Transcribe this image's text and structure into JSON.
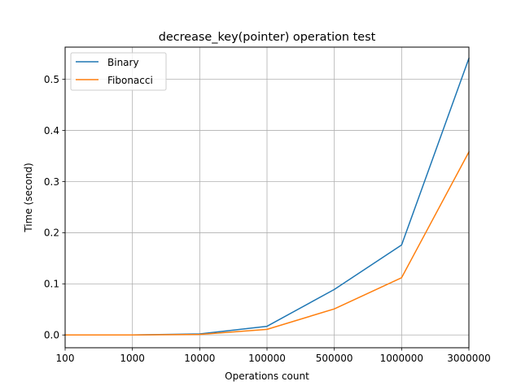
{
  "chart_data": {
    "type": "line",
    "title": "decrease_key(pointer) operation test",
    "xlabel": "Operations count",
    "ylabel": "Time (second)",
    "categories": [
      "100",
      "1000",
      "10000",
      "100000",
      "500000",
      "1000000",
      "3000000"
    ],
    "ylim": [
      -0.025,
      0.563
    ],
    "yticks": [
      0.0,
      0.1,
      0.2,
      0.3,
      0.4,
      0.5
    ],
    "ytick_labels": [
      "0.0",
      "0.1",
      "0.2",
      "0.3",
      "0.4",
      "0.5"
    ],
    "grid": true,
    "legend_position": "top-left",
    "series": [
      {
        "name": "Binary",
        "color": "#1f77b4",
        "values": [
          0.0,
          0.0,
          0.002,
          0.017,
          0.089,
          0.176,
          0.541
        ]
      },
      {
        "name": "Fibonacci",
        "color": "#ff7f0e",
        "values": [
          0.0,
          0.0,
          0.001,
          0.011,
          0.051,
          0.112,
          0.358
        ]
      }
    ]
  }
}
